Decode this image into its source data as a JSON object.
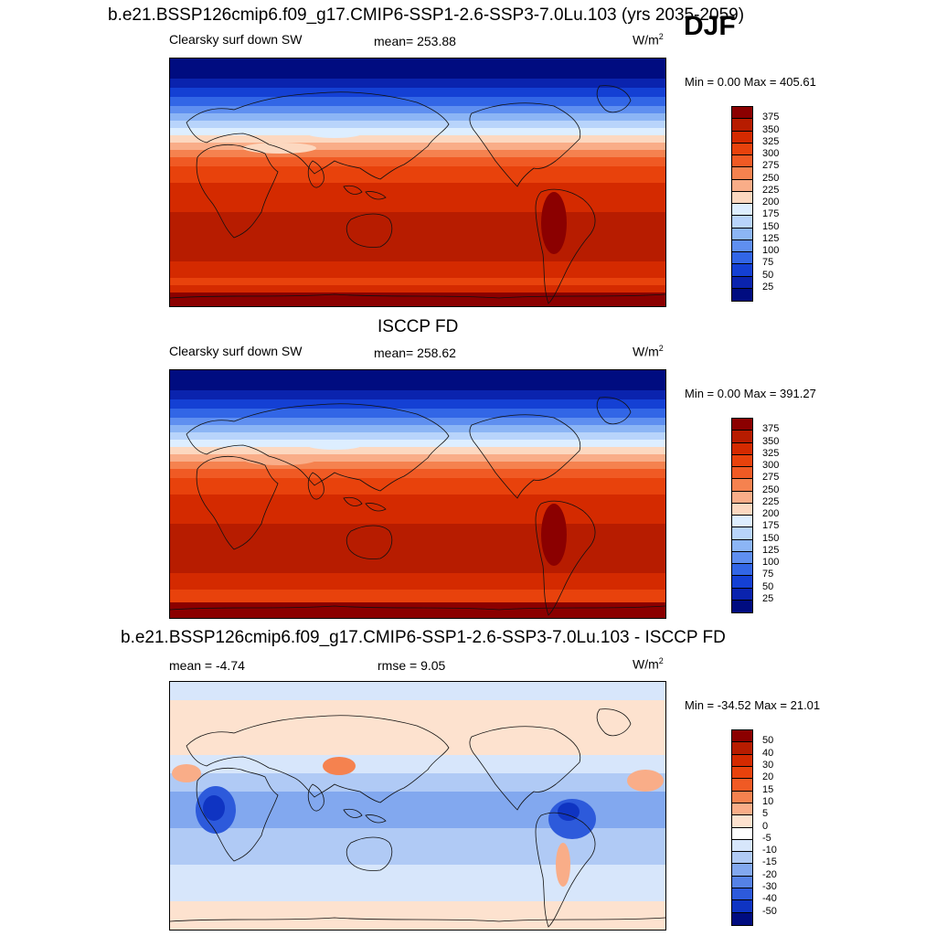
{
  "season": "DJF",
  "panels": [
    {
      "title": "b.e21.BSSP126cmip6.f09_g17.CMIP6-SSP1-2.6-SSP3-7.0Lu.103 (yrs 2035-2059)",
      "left_label": "Clearsky surf down SW",
      "center_label": "mean= 253.88",
      "units": "W/m",
      "units_sup": "2",
      "min_max": "Min =   0.00 Max = 405.61",
      "cbar_ticks": [
        "375",
        "350",
        "325",
        "300",
        "275",
        "250",
        "225",
        "200",
        "175",
        "150",
        "125",
        "100",
        "75",
        "50",
        "25"
      ],
      "cbar_colors": [
        "#8b0000",
        "#b71c00",
        "#d42a00",
        "#e8420c",
        "#f05a24",
        "#f5824f",
        "#f9ad88",
        "#fcd8c0",
        "#ddeeff",
        "#b8d4fb",
        "#8cb5f5",
        "#5f8ff0",
        "#3266e6",
        "#1440d4",
        "#0a23ae",
        "#000c80"
      ]
    },
    {
      "title": "ISCCP FD",
      "left_label": "Clearsky surf down SW",
      "center_label": "mean= 258.62",
      "units": "W/m",
      "units_sup": "2",
      "min_max": "Min =   0.00 Max = 391.27",
      "cbar_ticks": [
        "375",
        "350",
        "325",
        "300",
        "275",
        "250",
        "225",
        "200",
        "175",
        "150",
        "125",
        "100",
        "75",
        "50",
        "25"
      ],
      "cbar_colors": [
        "#8b0000",
        "#b71c00",
        "#d42a00",
        "#e8420c",
        "#f05a24",
        "#f5824f",
        "#f9ad88",
        "#fcd8c0",
        "#ddeeff",
        "#b8d4fb",
        "#8cb5f5",
        "#5f8ff0",
        "#3266e6",
        "#1440d4",
        "#0a23ae",
        "#000c80"
      ]
    },
    {
      "title": "b.e21.BSSP126cmip6.f09_g17.CMIP6-SSP1-2.6-SSP3-7.0Lu.103 - ISCCP FD",
      "left_label": "mean =  -4.74",
      "center_label": "rmse =   9.05",
      "units": "W/m",
      "units_sup": "2",
      "min_max": "Min = -34.52 Max =  21.01",
      "cbar_ticks": [
        "50",
        "40",
        "30",
        "20",
        "15",
        "10",
        "5",
        "0",
        "-5",
        "-10",
        "-15",
        "-20",
        "-30",
        "-40",
        "-50"
      ],
      "cbar_colors": [
        "#8b0000",
        "#b71c00",
        "#d42a00",
        "#e8420c",
        "#f05a24",
        "#f5824f",
        "#f9ad88",
        "#fde2cf",
        "#ffffff",
        "#d7e6fb",
        "#b0caf5",
        "#82a8ef",
        "#5582e6",
        "#2d5adb",
        "#0f34c2",
        "#000c80"
      ]
    }
  ]
}
